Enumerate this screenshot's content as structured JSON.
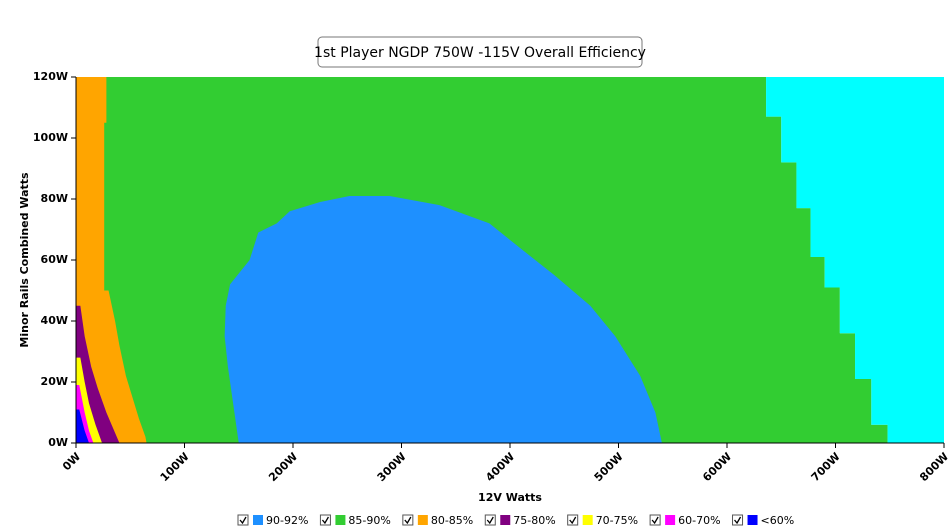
{
  "chart_data": {
    "type": "region",
    "title": "1st Player NGDP 750W -115V Overall Efficiency",
    "x_label": "12V Watts",
    "y_label": "Minor Rails Combined Watts",
    "xlim": [
      0,
      800
    ],
    "ylim": [
      0,
      120
    ],
    "xticks": [
      {
        "value": 0,
        "label": "0W"
      },
      {
        "value": 100,
        "label": "100W"
      },
      {
        "value": 200,
        "label": "200W"
      },
      {
        "value": 300,
        "label": "300W"
      },
      {
        "value": 400,
        "label": "400W"
      },
      {
        "value": 500,
        "label": "500W"
      },
      {
        "value": 600,
        "label": "600W"
      },
      {
        "value": 700,
        "label": "700W"
      },
      {
        "value": 800,
        "label": "800W"
      }
    ],
    "yticks": [
      {
        "value": 0,
        "label": "0W"
      },
      {
        "value": 20,
        "label": "20W"
      },
      {
        "value": 40,
        "label": "40W"
      },
      {
        "value": 60,
        "label": "60W"
      },
      {
        "value": 80,
        "label": "80W"
      },
      {
        "value": 100,
        "label": "100W"
      },
      {
        "value": 120,
        "label": "120W"
      }
    ],
    "series": [
      {
        "name": "90-92%",
        "color": "#1e90ff",
        "x": [
          150,
          146,
          140,
          137,
          138,
          142,
          160,
          168,
          185,
          197,
          225,
          252,
          289,
          335,
          381,
          409,
          441,
          474,
          497,
          520,
          534,
          540
        ],
        "y": [
          0,
          10,
          25,
          35,
          45,
          52,
          60,
          69,
          72,
          76,
          79,
          81,
          81,
          78,
          72,
          64,
          55,
          45,
          35,
          22,
          10,
          0
        ]
      },
      {
        "name": "85-90%",
        "color": "#32cd32",
        "x": [
          0,
          0,
          636,
          636,
          650,
          650,
          664,
          664,
          677,
          677,
          690,
          690,
          704,
          704,
          718,
          718,
          733,
          733,
          748,
          748
        ],
        "y": [
          0,
          120,
          120,
          107,
          107,
          92,
          92,
          77,
          77,
          61,
          61,
          51,
          51,
          36,
          36,
          21,
          21,
          6,
          6,
          0
        ]
      },
      {
        "name": "80-85%",
        "color": "#ffa500",
        "x": [
          0,
          28,
          28,
          26,
          26,
          30,
          36,
          40,
          46,
          52,
          58,
          64,
          65,
          0
        ],
        "y": [
          120,
          120,
          105,
          105,
          50,
          50,
          40,
          32,
          22,
          15,
          8,
          2,
          0,
          0
        ]
      },
      {
        "name": "75-80%",
        "color": "#800080",
        "x": [
          0,
          4,
          8,
          14,
          20,
          28,
          34,
          40,
          0
        ],
        "y": [
          45,
          45,
          35,
          25,
          18,
          10,
          5,
          0,
          0
        ]
      },
      {
        "name": "70-75%",
        "color": "#ffff00",
        "x": [
          0,
          4,
          8,
          12,
          18,
          24,
          0
        ],
        "y": [
          28,
          28,
          20,
          13,
          6,
          0,
          0
        ]
      },
      {
        "name": "60-70%",
        "color": "#ff00ff",
        "x": [
          0,
          3,
          8,
          12,
          16,
          0
        ],
        "y": [
          19,
          19,
          10,
          4,
          0,
          0
        ]
      },
      {
        "name": "<60%",
        "color": "#0000ff",
        "x": [
          0,
          3,
          8,
          12,
          0
        ],
        "y": [
          11,
          11,
          4,
          0,
          0
        ]
      },
      {
        "color": "#00ffff",
        "x": [
          636,
          636,
          650,
          650,
          664,
          664,
          677,
          677,
          690,
          690,
          704,
          704,
          718,
          718,
          733,
          733,
          748,
          748,
          800,
          800
        ],
        "y": [
          120,
          107,
          107,
          92,
          92,
          77,
          77,
          61,
          61,
          51,
          51,
          36,
          36,
          21,
          21,
          6,
          6,
          0,
          0,
          120
        ]
      }
    ]
  }
}
